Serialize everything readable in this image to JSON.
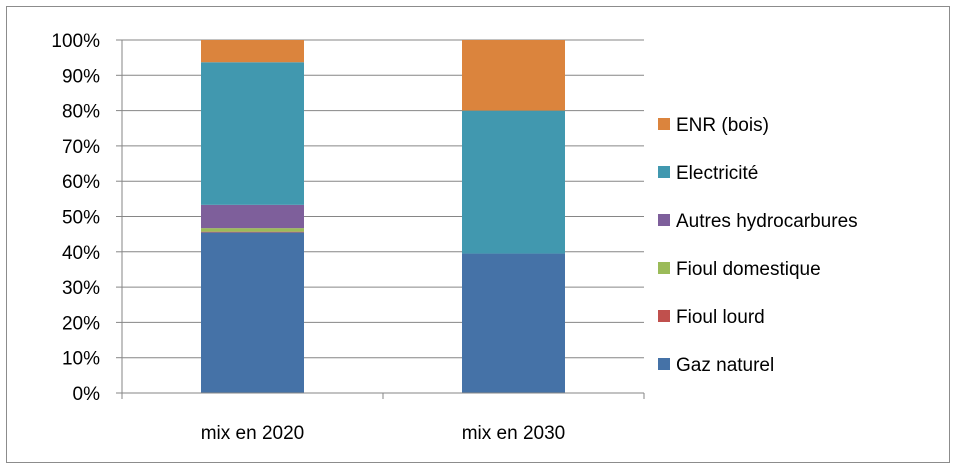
{
  "chart_data": {
    "type": "bar",
    "stacked": true,
    "percent": true,
    "title": "",
    "xlabel": "",
    "ylabel": "",
    "ylim": [
      0,
      100
    ],
    "yticks": [
      "0%",
      "10%",
      "20%",
      "30%",
      "40%",
      "50%",
      "60%",
      "70%",
      "80%",
      "90%",
      "100%"
    ],
    "categories": [
      "mix en 2020",
      "mix en 2030"
    ],
    "grid": true,
    "legend_position": "right",
    "series": [
      {
        "name": "Gaz naturel",
        "color": "#4572a7",
        "values": [
          45.5,
          39.5
        ]
      },
      {
        "name": "Fioul lourd",
        "color": "#c0504d",
        "values": [
          0.2,
          0
        ]
      },
      {
        "name": "Fioul domestique",
        "color": "#9bbb59",
        "values": [
          1.0,
          0
        ]
      },
      {
        "name": "Autres hydrocarbures",
        "color": "#7e5f9b",
        "values": [
          6.6,
          0
        ]
      },
      {
        "name": "Electricité",
        "color": "#4198af",
        "values": [
          40.4,
          40.5
        ]
      },
      {
        "name": "ENR (bois)",
        "color": "#db843d",
        "values": [
          6.3,
          20.0
        ]
      }
    ]
  }
}
